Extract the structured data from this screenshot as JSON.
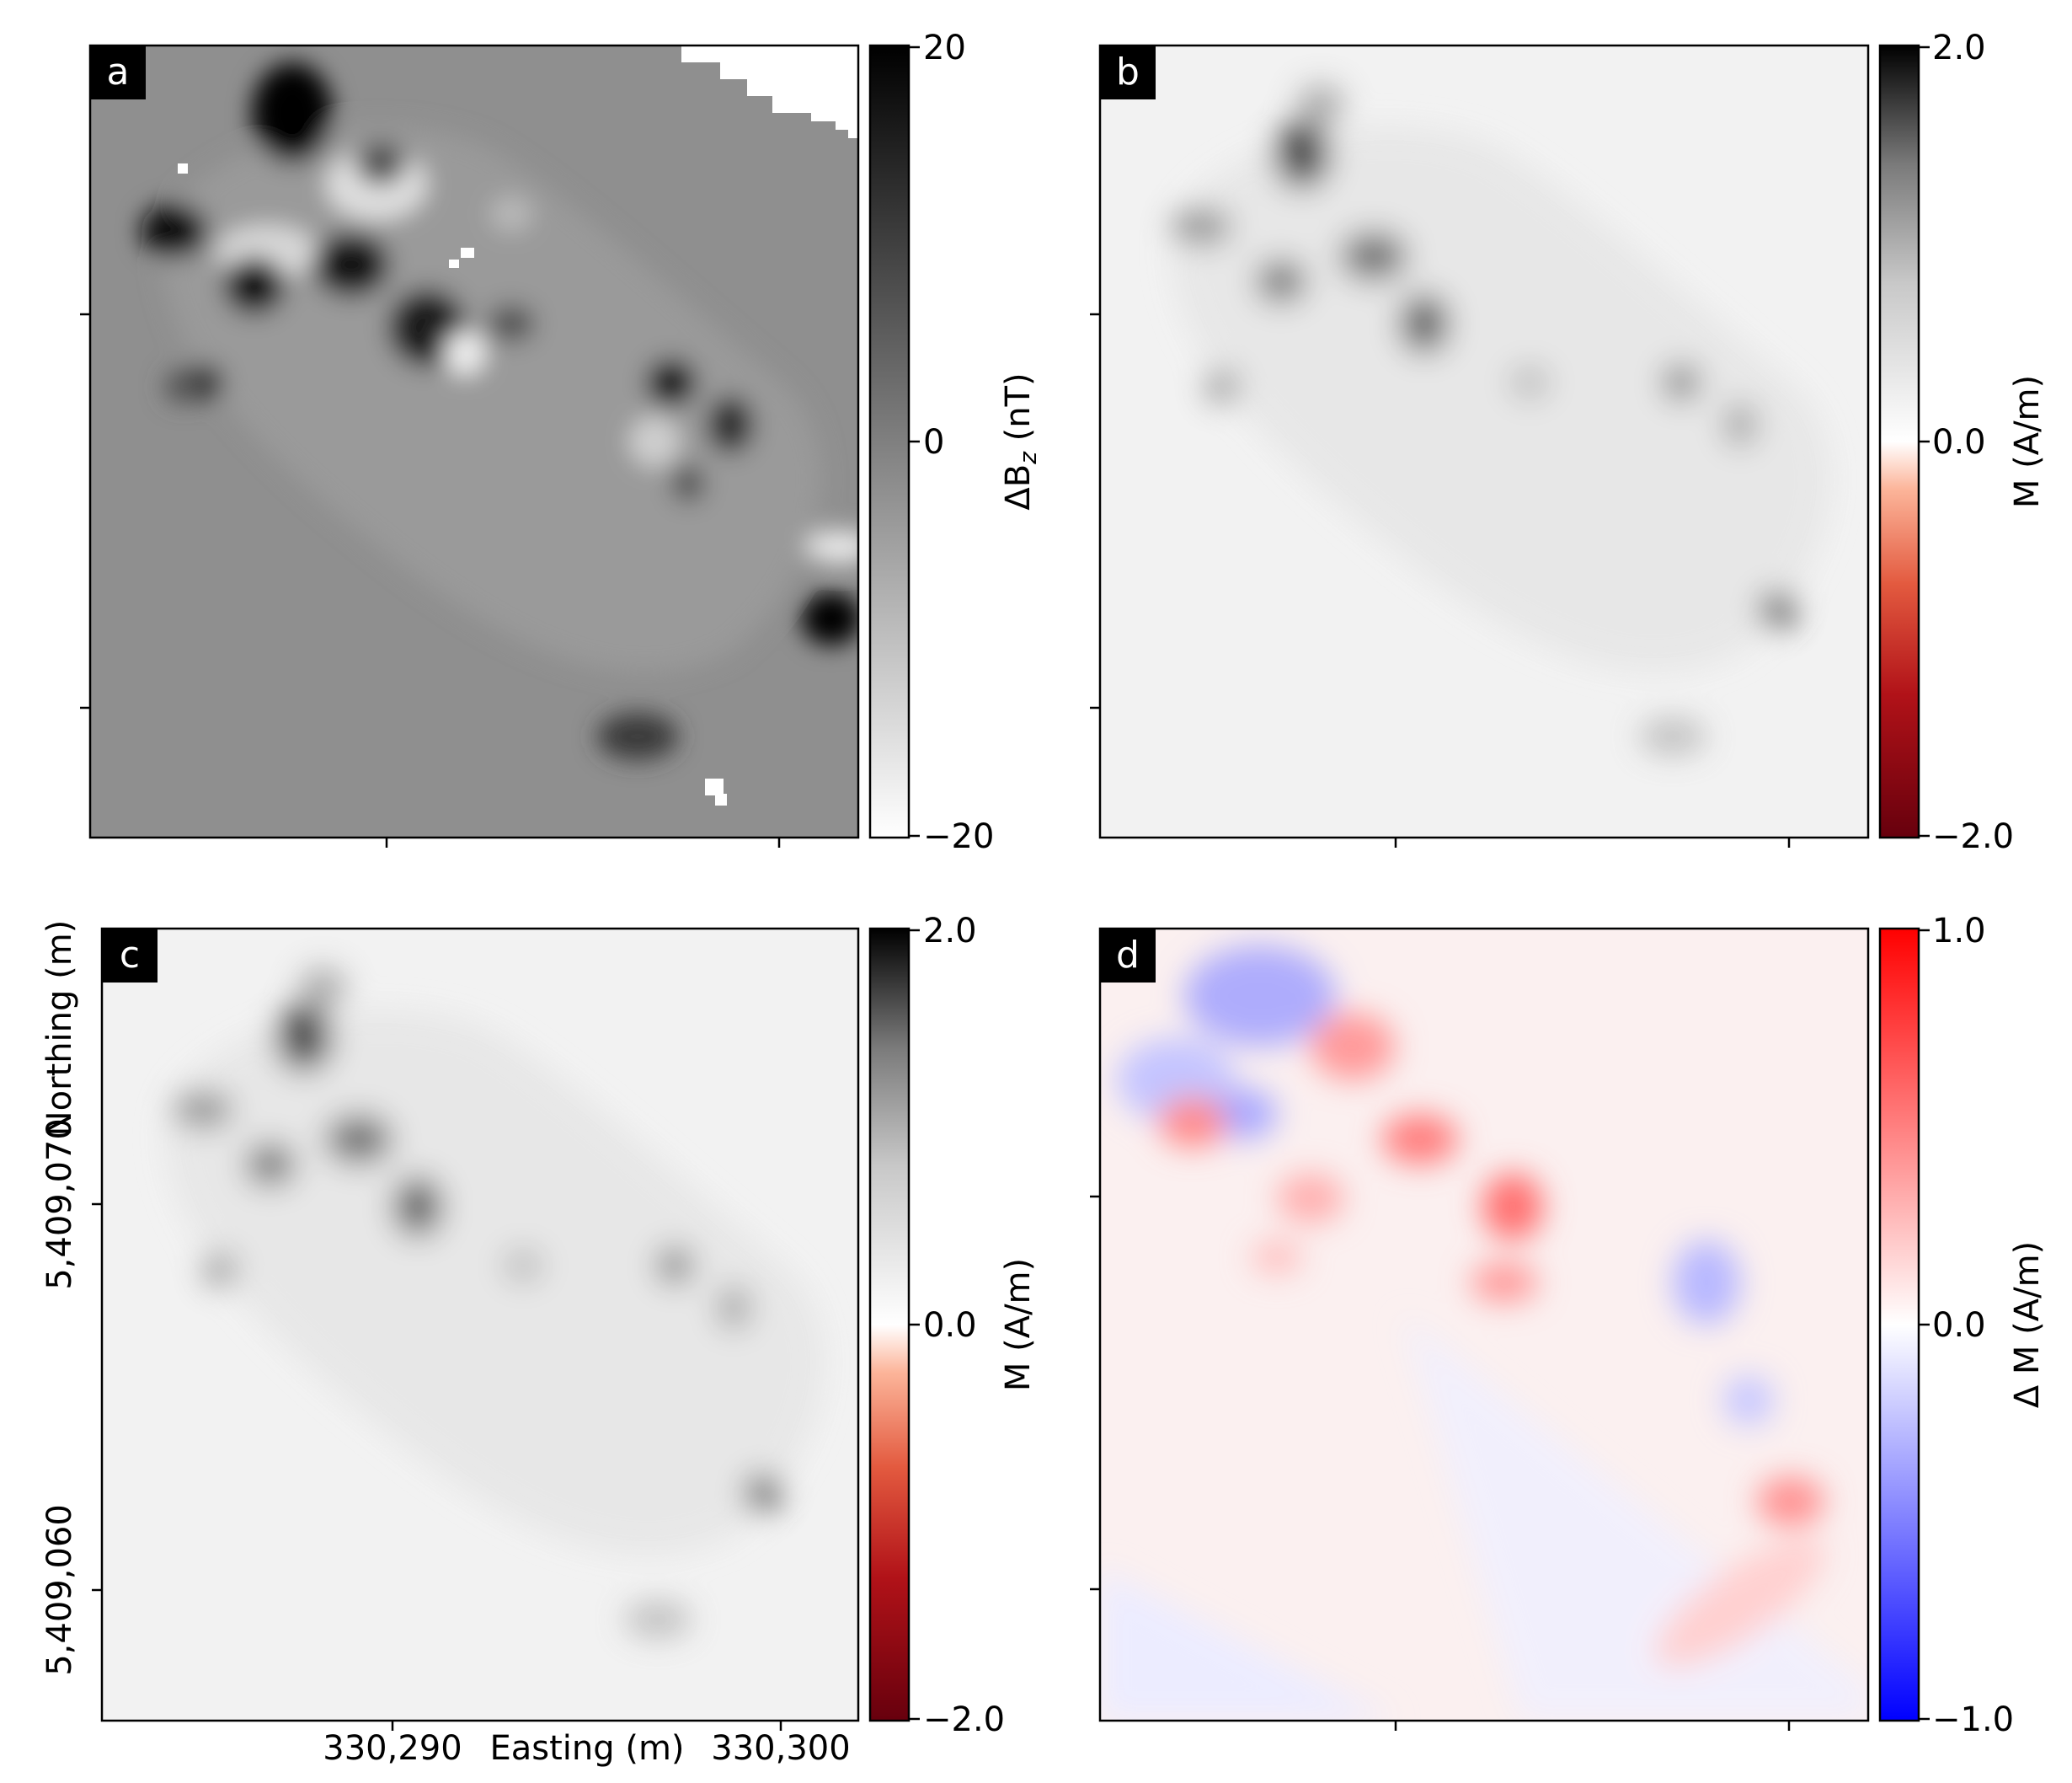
{
  "chart_data": [
    {
      "panel": "a",
      "type": "heatmap",
      "xlabel": "",
      "ylabel": "",
      "colorbar": {
        "label_prefix": "ΔB",
        "label_sub": "z",
        "label_suffix": " (nT)",
        "ticks": [
          "20",
          "0",
          "−20"
        ],
        "range": [
          -20,
          20
        ],
        "colormap": "gray_r"
      },
      "x_ticks": [
        "",
        ""
      ],
      "y_ticks": [
        "",
        ""
      ]
    },
    {
      "panel": "b",
      "type": "heatmap",
      "xlabel": "",
      "ylabel": "",
      "colorbar": {
        "label": "M (A/m)",
        "ticks": [
          "2.0",
          "0.0",
          "−2.0"
        ],
        "range": [
          -2.0,
          2.0
        ],
        "colormap": "gray_r above 0, reds below 0"
      },
      "x_ticks": [
        "",
        ""
      ],
      "y_ticks": [
        "",
        ""
      ]
    },
    {
      "panel": "c",
      "type": "heatmap",
      "xlabel": "Easting (m)",
      "ylabel": "Northing (m)",
      "colorbar": {
        "label": "M (A/m)",
        "ticks": [
          "2.0",
          "0.0",
          "−2.0"
        ],
        "range": [
          -2.0,
          2.0
        ],
        "colormap": "gray_r above 0, reds below 0"
      },
      "x_ticks": [
        "330,290",
        "330,300"
      ],
      "y_ticks": [
        "5,409,070",
        "5,409,060"
      ]
    },
    {
      "panel": "d",
      "type": "heatmap",
      "xlabel": "",
      "ylabel": "",
      "colorbar": {
        "label": "Δ M (A/m)",
        "ticks": [
          "1.0",
          "0.0",
          "−1.0"
        ],
        "range": [
          -1.0,
          1.0
        ],
        "colormap": "bwr"
      },
      "x_ticks": [
        "",
        ""
      ],
      "y_ticks": [
        "",
        ""
      ]
    }
  ],
  "colors": {
    "red_dark": "#67000d",
    "red_mid": "#e35a3f",
    "blue_full": "#0000ff",
    "red_full": "#ff0000"
  }
}
